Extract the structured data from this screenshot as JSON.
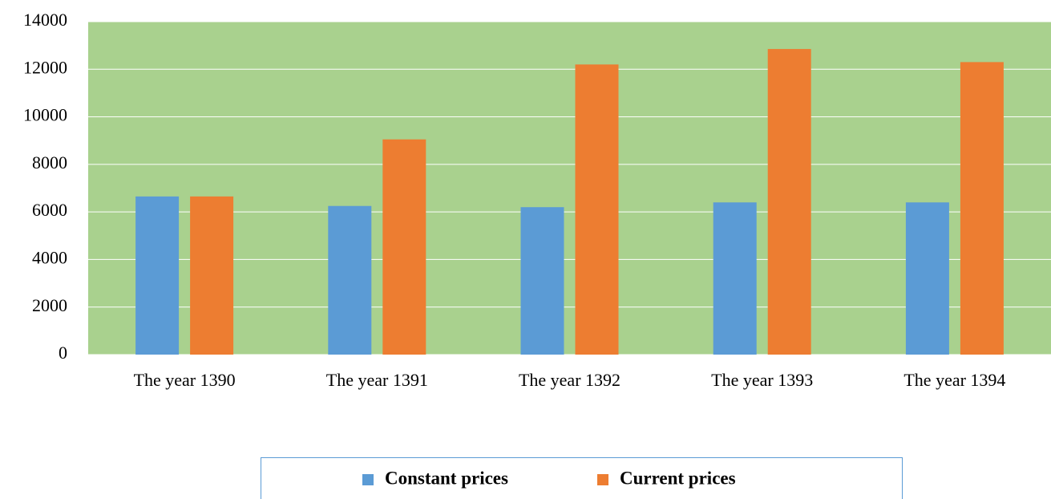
{
  "chart_data": {
    "type": "bar",
    "categories": [
      "The year 1390",
      "The year 1391",
      "The year 1392",
      "The year 1393",
      "The year 1394"
    ],
    "series": [
      {
        "name": "Constant prices",
        "color": "#5b9bd5",
        "values": [
          6650,
          6250,
          6200,
          6400,
          6400
        ]
      },
      {
        "name": "Current prices",
        "color": "#ed7d31",
        "values": [
          6650,
          9050,
          12200,
          12850,
          12300
        ]
      }
    ],
    "ylim": [
      0,
      14000
    ],
    "yticks": [
      0,
      2000,
      4000,
      6000,
      8000,
      10000,
      12000,
      14000
    ],
    "grid": true,
    "plot_background": "#a9d18e",
    "legend": "bottom"
  }
}
